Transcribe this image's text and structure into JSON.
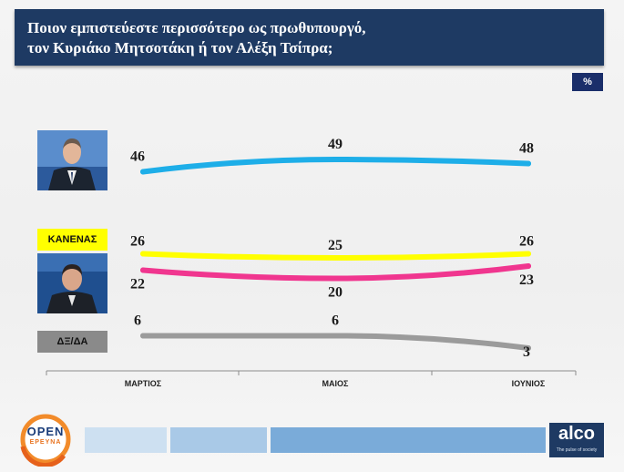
{
  "title": {
    "line1": "Ποιον εμπιστεύεστε περισσότερο ως πρωθυπουργό,",
    "line2": "τον Κυριάκο Μητσοτάκη ή τον Αλέξη Τσίπρα;"
  },
  "unit_badge": "%",
  "labels": {
    "none": "ΚΑΝΕΝΑΣ",
    "dkna": "ΔΞ/ΔΑ"
  },
  "logos": {
    "open": "OPEN",
    "open_sub": "ΕΡΕΥΝΑ",
    "alco": "alco",
    "alco_tagline": "The pulse of society"
  },
  "colors": {
    "banner": "#1e3a63",
    "mitsotakis": "#1eaee8",
    "none": "#ffff00",
    "tsipras": "#f0368f",
    "dkna": "#9b9b9b"
  },
  "chart_data": {
    "type": "line",
    "categories": [
      "ΜΑΡΤΙΟΣ",
      "ΜΑΙΟΣ",
      "ΙΟΥΝΙΟΣ"
    ],
    "series": [
      {
        "key": "mitsotakis",
        "values": [
          46,
          49,
          48
        ]
      },
      {
        "key": "none",
        "name": "ΚΑΝΕΝΑΣ",
        "values": [
          26,
          25,
          26
        ]
      },
      {
        "key": "tsipras",
        "values": [
          22,
          20,
          23
        ]
      },
      {
        "key": "dkna",
        "name": "ΔΞ/ΔΑ",
        "values": [
          6,
          6,
          3
        ]
      }
    ],
    "unit": "%"
  }
}
